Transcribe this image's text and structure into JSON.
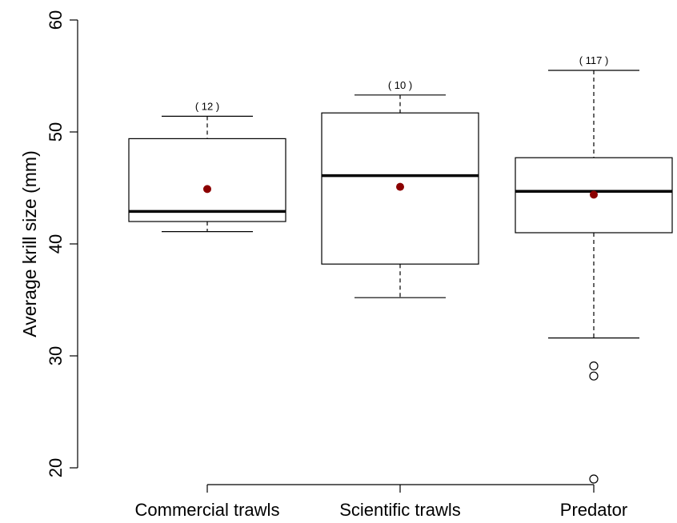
{
  "chart_data": {
    "type": "boxplot",
    "title": "",
    "ylabel": "Average krill size (mm)",
    "xlabel": "",
    "ylim": [
      20,
      60
    ],
    "yticks": [
      "20",
      "30",
      "40",
      "50",
      "60"
    ],
    "grid": false,
    "legend": "none",
    "colors": {
      "box_fill": "#ffffff",
      "line": "#000000",
      "mean_point": "#8b0000"
    },
    "groups": [
      {
        "category": "Commercial trawls",
        "count_label": "( 12 )",
        "whisker_low": 41.1,
        "q1": 42.0,
        "median": 42.9,
        "q3": 49.4,
        "whisker_high": 51.4,
        "mean": 44.9,
        "outliers": []
      },
      {
        "category": "Scientific trawls",
        "count_label": "( 10 )",
        "whisker_low": 35.2,
        "q1": 38.2,
        "median": 46.1,
        "q3": 51.7,
        "whisker_high": 53.3,
        "mean": 45.1,
        "outliers": []
      },
      {
        "category": "Predator",
        "count_label": "( 117 )",
        "whisker_low": 31.6,
        "q1": 41.0,
        "median": 44.7,
        "q3": 47.7,
        "whisker_high": 55.5,
        "mean": 44.4,
        "outliers": [
          29.1,
          28.2,
          19.0
        ]
      }
    ]
  }
}
